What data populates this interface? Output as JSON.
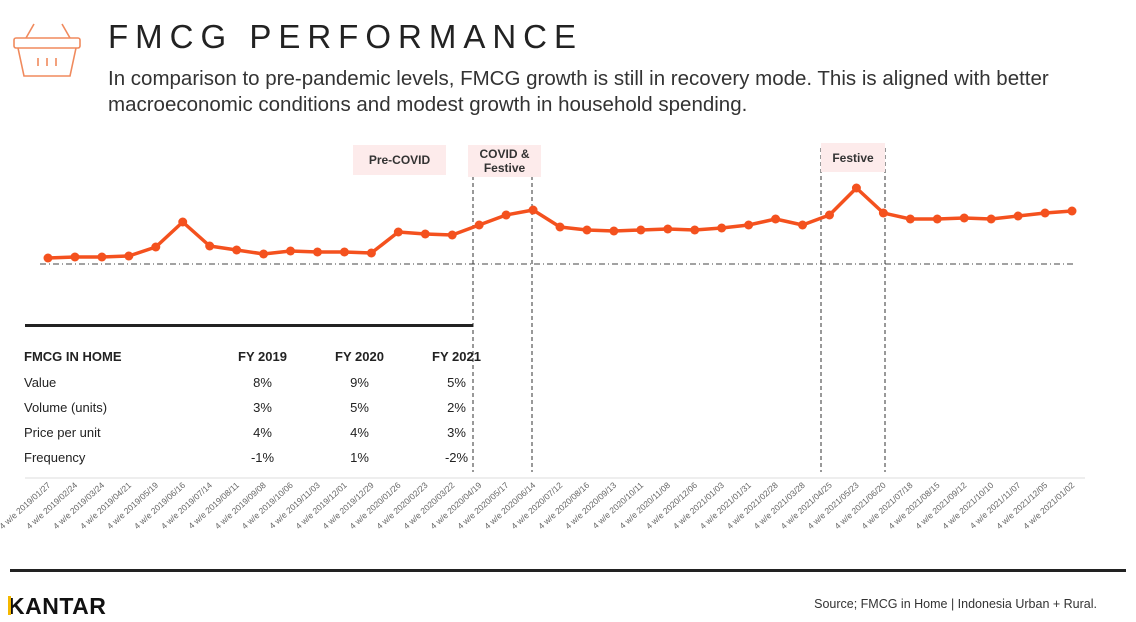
{
  "header": {
    "title": "FMCG PERFORMANCE",
    "subtitle": "In comparison to pre-pandemic levels, FMCG growth is still in recovery mode. This is aligned with better macroeconomic conditions and modest growth in household spending."
  },
  "chart_data": {
    "type": "line",
    "categories": [
      "4 w/e 2019/01/27",
      "4 w/e 2019/02/24",
      "4 w/e 2019/03/24",
      "4 w/e 2019/04/21",
      "4 w/e 2019/05/19",
      "4 w/e 2019/06/16",
      "4 w/e 2019/07/14",
      "4 w/e 2019/08/11",
      "4 w/e 2019/09/08",
      "4 w/e 2019/10/06",
      "4 w/e 2019/11/03",
      "4 w/e 2019/12/01",
      "4 w/e 2019/12/29",
      "4 w/e 2020/01/26",
      "4 w/e 2020/02/23",
      "4 w/e 2020/03/22",
      "4 w/e 2020/04/19",
      "4 w/e 2020/05/17",
      "4 w/e 2020/06/14",
      "4 w/e 2020/07/12",
      "4 w/e 2020/08/16",
      "4 w/e 2020/09/13",
      "4 w/e 2020/10/11",
      "4 w/e 2020/11/08",
      "4 w/e 2020/12/06",
      "4 w/e 2021/01/03",
      "4 w/e 2021/01/31",
      "4 w/e 2021/02/28",
      "4 w/e 2021/03/28",
      "4 w/e 2021/04/25",
      "4 w/e 2021/05/23",
      "4 w/e 2021/06/20",
      "4 w/e 2021/07/18",
      "4 w/e 2021/08/15",
      "4 w/e 2021/09/12",
      "4 w/e 2021/10/10",
      "4 w/e 2021/11/07",
      "4 w/e 2021/12/05",
      "4 w/e 2021/01/02"
    ],
    "values": [
      6,
      7,
      7,
      8,
      17,
      42,
      18,
      14,
      10,
      13,
      12,
      12,
      11,
      32,
      30,
      29,
      39,
      49,
      54,
      37,
      34,
      33,
      34,
      35,
      34,
      36,
      39,
      45,
      39,
      49,
      76,
      51,
      45,
      45,
      46,
      45,
      48,
      51,
      53
    ],
    "color": "#f4511e",
    "ylim": [
      0,
      120
    ],
    "annotations": [
      "Pre-COVID",
      "COVID & Festive",
      "Festive"
    ]
  },
  "table": {
    "header": [
      "FMCG IN HOME",
      "FY 2019",
      "FY 2020",
      "FY 2021"
    ],
    "rows": [
      [
        "Value",
        "8%",
        "9%",
        "5%"
      ],
      [
        "Volume (units)",
        "3%",
        "5%",
        "2%"
      ],
      [
        "Price per unit",
        "4%",
        "4%",
        "3%"
      ],
      [
        "Frequency",
        "-1%",
        "1%",
        "-2%"
      ]
    ]
  },
  "footer": {
    "logo": "KANTAR",
    "source": "Source; FMCG in Home | Indonesia Urban + Rural."
  }
}
